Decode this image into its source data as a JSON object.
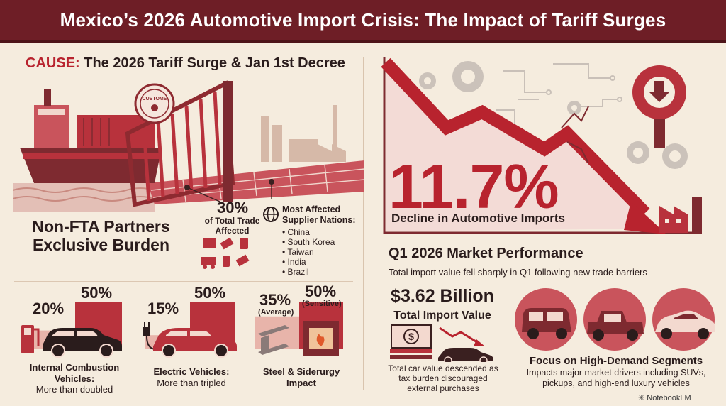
{
  "header": {
    "title": "Mexico’s 2026 Automotive Import Crisis: The Impact of Tariff Surges"
  },
  "cause": {
    "keyword": "CAUSE:",
    "title": " The 2026 Tariff Surge & Jan 1st Decree",
    "customs_seal_text": "CUSTOMS",
    "burden_line1": "Non-FTA Partners",
    "burden_line2": "Exclusive Burden",
    "share_value": "30%",
    "share_label": "of Total Trade Affected",
    "nations_title": "Most Affected Supplier Nations:",
    "nations": [
      "China",
      "South Korea",
      "Taiwan",
      "India",
      "Brazil"
    ]
  },
  "tariffs": [
    {
      "from": "20%",
      "to": "50%",
      "label": "Internal Combustion Vehicles:",
      "sub": "More than doubled",
      "from_value": 20,
      "to_value": 50
    },
    {
      "from": "15%",
      "to": "50%",
      "label": "Electric Vehicles:",
      "sub": "More than tripled",
      "from_value": 15,
      "to_value": 50
    },
    {
      "from": "35%",
      "from_note": "(Average)",
      "to": "50%",
      "to_note": "(Sensitive)",
      "label": "Steel & Siderurgy",
      "sub": "Impact",
      "from_value": 35,
      "to_value": 50
    }
  ],
  "decline": {
    "value": "11.7%",
    "label": "Decline in Automotive Imports"
  },
  "q1": {
    "title": "Q1 2026 Market Performance",
    "subtitle": "Total import value fell sharply in Q1 following new trade barriers",
    "import_value": "$3.62 Billion",
    "import_label": "Total Import Value",
    "value_note": "Total car value descended as tax burden discouraged external purchases",
    "focus_title": "Focus on High-Demand Segments",
    "focus_note": "Impacts major market drivers including SUVs, pickups, and high-end luxury vehicles"
  },
  "credit": "NotebookLM",
  "colors": {
    "header": "#6e1e26",
    "accent": "#b8232e",
    "bar_light": "#e8b4aa",
    "bar_dark": "#b8323c",
    "background": "#f5ecde"
  }
}
